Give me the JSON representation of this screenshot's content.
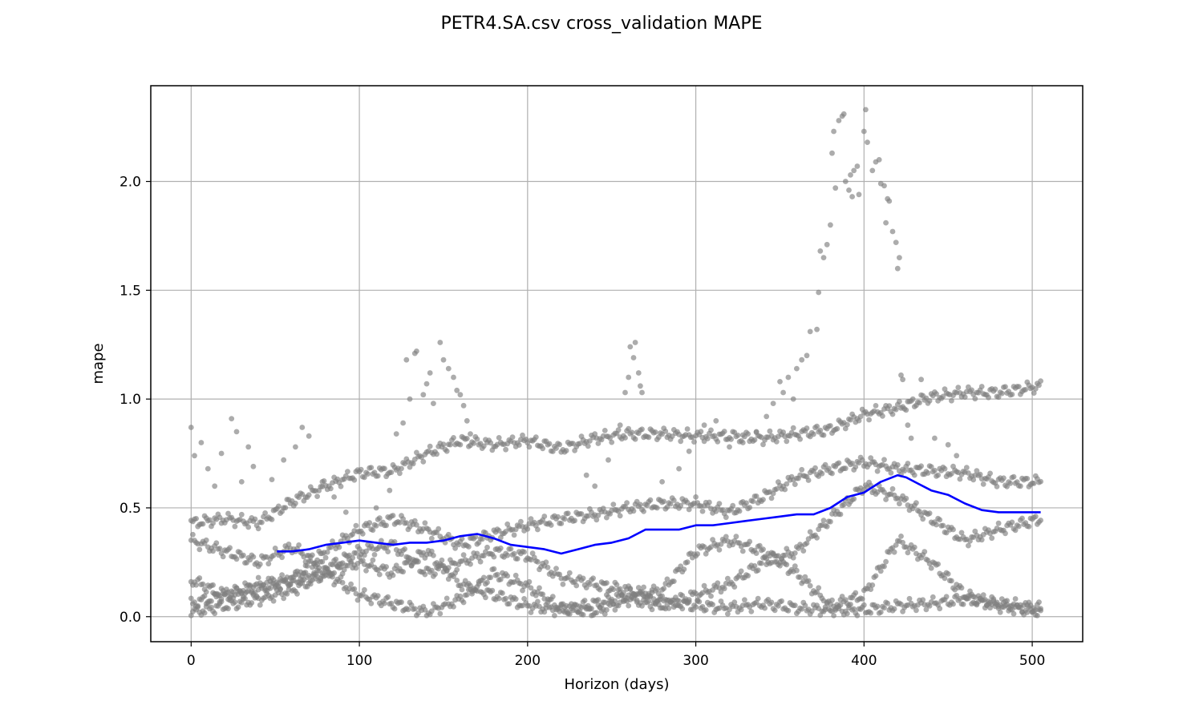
{
  "chart_data": {
    "type": "scatter",
    "title": "PETR4.SA.csv cross_validation MAPE",
    "xlabel": "Horizon (days)",
    "ylabel": "mape",
    "xlim": [
      -24,
      530
    ],
    "ylim": [
      -0.115,
      2.44
    ],
    "xticks": [
      0,
      100,
      200,
      300,
      400,
      500
    ],
    "xtick_labels": [
      "0",
      "100",
      "200",
      "300",
      "400",
      "500"
    ],
    "yticks": [
      0.0,
      0.5,
      1.0,
      1.5,
      2.0
    ],
    "ytick_labels": [
      "0.0",
      "0.5",
      "1.0",
      "1.5",
      "2.0"
    ],
    "grid": true,
    "legend": "none",
    "colors": {
      "points": "#808080",
      "line": "#0000ff"
    },
    "point_bands": [
      {
        "x": [
          0,
          20,
          40,
          60,
          80,
          100,
          120,
          140,
          160,
          180,
          200,
          220,
          240,
          260,
          280,
          300,
          320,
          340,
          360,
          380,
          400,
          420,
          440,
          460,
          480,
          505
        ],
        "y": [
          0.43,
          0.45,
          0.43,
          0.53,
          0.6,
          0.66,
          0.67,
          0.75,
          0.81,
          0.79,
          0.81,
          0.77,
          0.82,
          0.84,
          0.84,
          0.83,
          0.83,
          0.82,
          0.84,
          0.86,
          0.93,
          0.96,
          1.01,
          1.03,
          1.03,
          1.06
        ]
      },
      {
        "x": [
          0,
          20,
          40,
          60,
          80,
          100,
          120,
          140,
          160,
          180,
          200,
          220,
          240,
          260,
          280,
          300,
          320,
          340,
          360,
          380,
          400,
          420,
          440,
          460,
          480,
          505
        ],
        "y": [
          0.06,
          0.1,
          0.12,
          0.17,
          0.3,
          0.4,
          0.45,
          0.4,
          0.33,
          0.38,
          0.42,
          0.45,
          0.47,
          0.5,
          0.52,
          0.52,
          0.48,
          0.55,
          0.64,
          0.68,
          0.71,
          0.68,
          0.67,
          0.66,
          0.62,
          0.62
        ]
      },
      {
        "x": [
          0,
          20,
          40,
          60,
          80,
          100,
          120,
          140,
          160,
          180,
          200,
          220,
          240,
          260,
          280,
          300,
          320,
          340,
          360,
          380,
          400,
          420,
          440,
          460,
          480,
          505
        ],
        "y": [
          0.17,
          0.1,
          0.15,
          0.17,
          0.2,
          0.1,
          0.06,
          0.02,
          0.08,
          0.2,
          0.14,
          0.04,
          0.02,
          0.08,
          0.05,
          0.1,
          0.15,
          0.25,
          0.3,
          0.45,
          0.6,
          0.55,
          0.45,
          0.35,
          0.4,
          0.45
        ]
      },
      {
        "x": [
          0,
          20,
          40,
          60,
          80,
          100,
          120,
          140,
          160,
          180,
          200,
          220,
          240,
          260,
          280,
          300,
          320,
          340,
          360,
          380,
          400,
          420,
          440,
          460,
          480,
          505
        ],
        "y": [
          0.02,
          0.05,
          0.08,
          0.12,
          0.2,
          0.25,
          0.2,
          0.3,
          0.15,
          0.1,
          0.05,
          0.03,
          0.06,
          0.1,
          0.12,
          0.3,
          0.35,
          0.3,
          0.2,
          0.05,
          0.1,
          0.35,
          0.25,
          0.1,
          0.05,
          0.02
        ]
      },
      {
        "x": [
          0,
          20,
          40,
          60,
          80,
          100,
          120,
          140,
          160,
          180,
          200,
          220,
          240,
          260,
          280,
          300,
          320,
          340,
          360,
          380,
          400,
          420,
          440,
          460,
          480,
          505
        ],
        "y": [
          0.35,
          0.3,
          0.25,
          0.32,
          0.22,
          0.3,
          0.33,
          0.2,
          0.25,
          0.3,
          0.28,
          0.18,
          0.15,
          0.12,
          0.07,
          0.05,
          0.04,
          0.06,
          0.04,
          0.03,
          0.03,
          0.05,
          0.06,
          0.08,
          0.06,
          0.04
        ]
      }
    ],
    "points": [
      {
        "x": 0,
        "y": 0.87
      },
      {
        "x": 2,
        "y": 0.74
      },
      {
        "x": 6,
        "y": 0.8
      },
      {
        "x": 10,
        "y": 0.68
      },
      {
        "x": 14,
        "y": 0.6
      },
      {
        "x": 18,
        "y": 0.75
      },
      {
        "x": 24,
        "y": 0.91
      },
      {
        "x": 27,
        "y": 0.85
      },
      {
        "x": 30,
        "y": 0.62
      },
      {
        "x": 34,
        "y": 0.78
      },
      {
        "x": 37,
        "y": 0.69
      },
      {
        "x": 48,
        "y": 0.63
      },
      {
        "x": 55,
        "y": 0.72
      },
      {
        "x": 62,
        "y": 0.78
      },
      {
        "x": 66,
        "y": 0.87
      },
      {
        "x": 70,
        "y": 0.83
      },
      {
        "x": 78,
        "y": 0.62
      },
      {
        "x": 85,
        "y": 0.55
      },
      {
        "x": 92,
        "y": 0.48
      },
      {
        "x": 110,
        "y": 0.5
      },
      {
        "x": 118,
        "y": 0.58
      },
      {
        "x": 122,
        "y": 0.84
      },
      {
        "x": 126,
        "y": 0.89
      },
      {
        "x": 128,
        "y": 1.18
      },
      {
        "x": 130,
        "y": 1.0
      },
      {
        "x": 133,
        "y": 1.21
      },
      {
        "x": 134,
        "y": 1.22
      },
      {
        "x": 138,
        "y": 1.02
      },
      {
        "x": 140,
        "y": 1.07
      },
      {
        "x": 142,
        "y": 1.12
      },
      {
        "x": 144,
        "y": 0.98
      },
      {
        "x": 148,
        "y": 1.26
      },
      {
        "x": 150,
        "y": 1.18
      },
      {
        "x": 153,
        "y": 1.14
      },
      {
        "x": 156,
        "y": 1.1
      },
      {
        "x": 158,
        "y": 1.04
      },
      {
        "x": 160,
        "y": 1.02
      },
      {
        "x": 162,
        "y": 0.97
      },
      {
        "x": 164,
        "y": 0.9
      },
      {
        "x": 166,
        "y": 0.84
      },
      {
        "x": 235,
        "y": 0.65
      },
      {
        "x": 240,
        "y": 0.6
      },
      {
        "x": 248,
        "y": 0.72
      },
      {
        "x": 255,
        "y": 0.88
      },
      {
        "x": 258,
        "y": 1.03
      },
      {
        "x": 260,
        "y": 1.1
      },
      {
        "x": 261,
        "y": 1.24
      },
      {
        "x": 263,
        "y": 1.19
      },
      {
        "x": 264,
        "y": 1.26
      },
      {
        "x": 266,
        "y": 1.12
      },
      {
        "x": 267,
        "y": 1.06
      },
      {
        "x": 268,
        "y": 1.03
      },
      {
        "x": 280,
        "y": 0.62
      },
      {
        "x": 290,
        "y": 0.68
      },
      {
        "x": 296,
        "y": 0.76
      },
      {
        "x": 305,
        "y": 0.88
      },
      {
        "x": 312,
        "y": 0.9
      },
      {
        "x": 320,
        "y": 0.78
      },
      {
        "x": 328,
        "y": 0.8
      },
      {
        "x": 336,
        "y": 0.85
      },
      {
        "x": 342,
        "y": 0.92
      },
      {
        "x": 346,
        "y": 0.98
      },
      {
        "x": 350,
        "y": 1.08
      },
      {
        "x": 352,
        "y": 1.03
      },
      {
        "x": 355,
        "y": 1.1
      },
      {
        "x": 358,
        "y": 1.0
      },
      {
        "x": 360,
        "y": 1.14
      },
      {
        "x": 363,
        "y": 1.18
      },
      {
        "x": 366,
        "y": 1.2
      },
      {
        "x": 368,
        "y": 1.31
      },
      {
        "x": 372,
        "y": 1.32
      },
      {
        "x": 373,
        "y": 1.49
      },
      {
        "x": 374,
        "y": 1.68
      },
      {
        "x": 376,
        "y": 1.65
      },
      {
        "x": 378,
        "y": 1.71
      },
      {
        "x": 380,
        "y": 1.8
      },
      {
        "x": 381,
        "y": 2.13
      },
      {
        "x": 382,
        "y": 2.23
      },
      {
        "x": 383,
        "y": 1.97
      },
      {
        "x": 385,
        "y": 2.28
      },
      {
        "x": 387,
        "y": 2.3
      },
      {
        "x": 388,
        "y": 2.31
      },
      {
        "x": 389,
        "y": 2.0
      },
      {
        "x": 391,
        "y": 1.96
      },
      {
        "x": 392,
        "y": 2.03
      },
      {
        "x": 393,
        "y": 1.93
      },
      {
        "x": 394,
        "y": 2.05
      },
      {
        "x": 396,
        "y": 2.07
      },
      {
        "x": 397,
        "y": 1.94
      },
      {
        "x": 400,
        "y": 2.23
      },
      {
        "x": 401,
        "y": 2.33
      },
      {
        "x": 402,
        "y": 2.18
      },
      {
        "x": 405,
        "y": 2.05
      },
      {
        "x": 407,
        "y": 2.09
      },
      {
        "x": 409,
        "y": 2.1
      },
      {
        "x": 410,
        "y": 1.99
      },
      {
        "x": 412,
        "y": 1.98
      },
      {
        "x": 413,
        "y": 1.81
      },
      {
        "x": 414,
        "y": 1.92
      },
      {
        "x": 415,
        "y": 1.91
      },
      {
        "x": 417,
        "y": 1.77
      },
      {
        "x": 419,
        "y": 1.72
      },
      {
        "x": 420,
        "y": 1.6
      },
      {
        "x": 421,
        "y": 1.65
      },
      {
        "x": 422,
        "y": 1.11
      },
      {
        "x": 423,
        "y": 1.09
      },
      {
        "x": 426,
        "y": 0.88
      },
      {
        "x": 428,
        "y": 0.82
      },
      {
        "x": 434,
        "y": 1.09
      },
      {
        "x": 442,
        "y": 0.82
      },
      {
        "x": 450,
        "y": 0.79
      },
      {
        "x": 455,
        "y": 0.74
      }
    ],
    "moving_average": {
      "x": [
        51,
        60,
        70,
        80,
        90,
        100,
        110,
        120,
        130,
        140,
        150,
        160,
        170,
        180,
        190,
        200,
        210,
        220,
        230,
        240,
        250,
        260,
        270,
        280,
        290,
        300,
        310,
        320,
        330,
        340,
        350,
        360,
        370,
        380,
        390,
        400,
        410,
        420,
        425,
        430,
        440,
        450,
        460,
        470,
        480,
        490,
        505
      ],
      "y": [
        0.3,
        0.3,
        0.31,
        0.33,
        0.34,
        0.35,
        0.34,
        0.33,
        0.34,
        0.34,
        0.35,
        0.37,
        0.38,
        0.36,
        0.33,
        0.32,
        0.31,
        0.29,
        0.31,
        0.33,
        0.34,
        0.36,
        0.4,
        0.4,
        0.4,
        0.42,
        0.42,
        0.43,
        0.44,
        0.45,
        0.46,
        0.47,
        0.47,
        0.5,
        0.55,
        0.57,
        0.62,
        0.65,
        0.64,
        0.62,
        0.58,
        0.56,
        0.52,
        0.49,
        0.48,
        0.48,
        0.48
      ]
    }
  }
}
